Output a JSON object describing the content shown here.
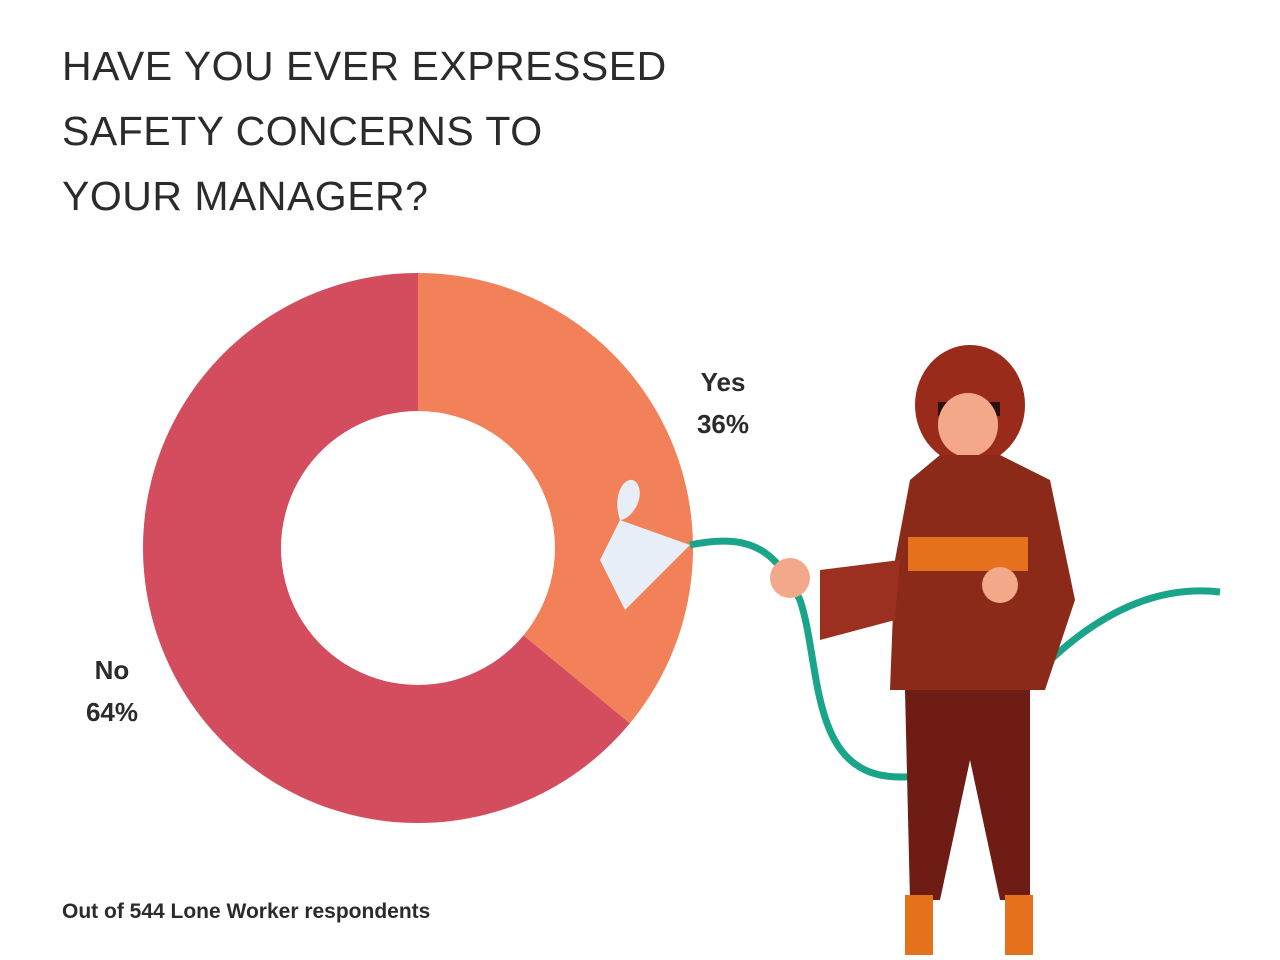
{
  "chart_data": {
    "type": "donut",
    "title": "HAVE YOU EVER EXPRESSED\nSAFETY CONCERNS TO\nYOUR MANAGER?",
    "categories": [
      "Yes",
      "No"
    ],
    "values": [
      36,
      64
    ],
    "value_labels": [
      "36%",
      "64%"
    ],
    "colors": [
      "#f28159",
      "#d44d5e"
    ],
    "footnote": "Out of 544 Lone Worker respondents"
  }
}
